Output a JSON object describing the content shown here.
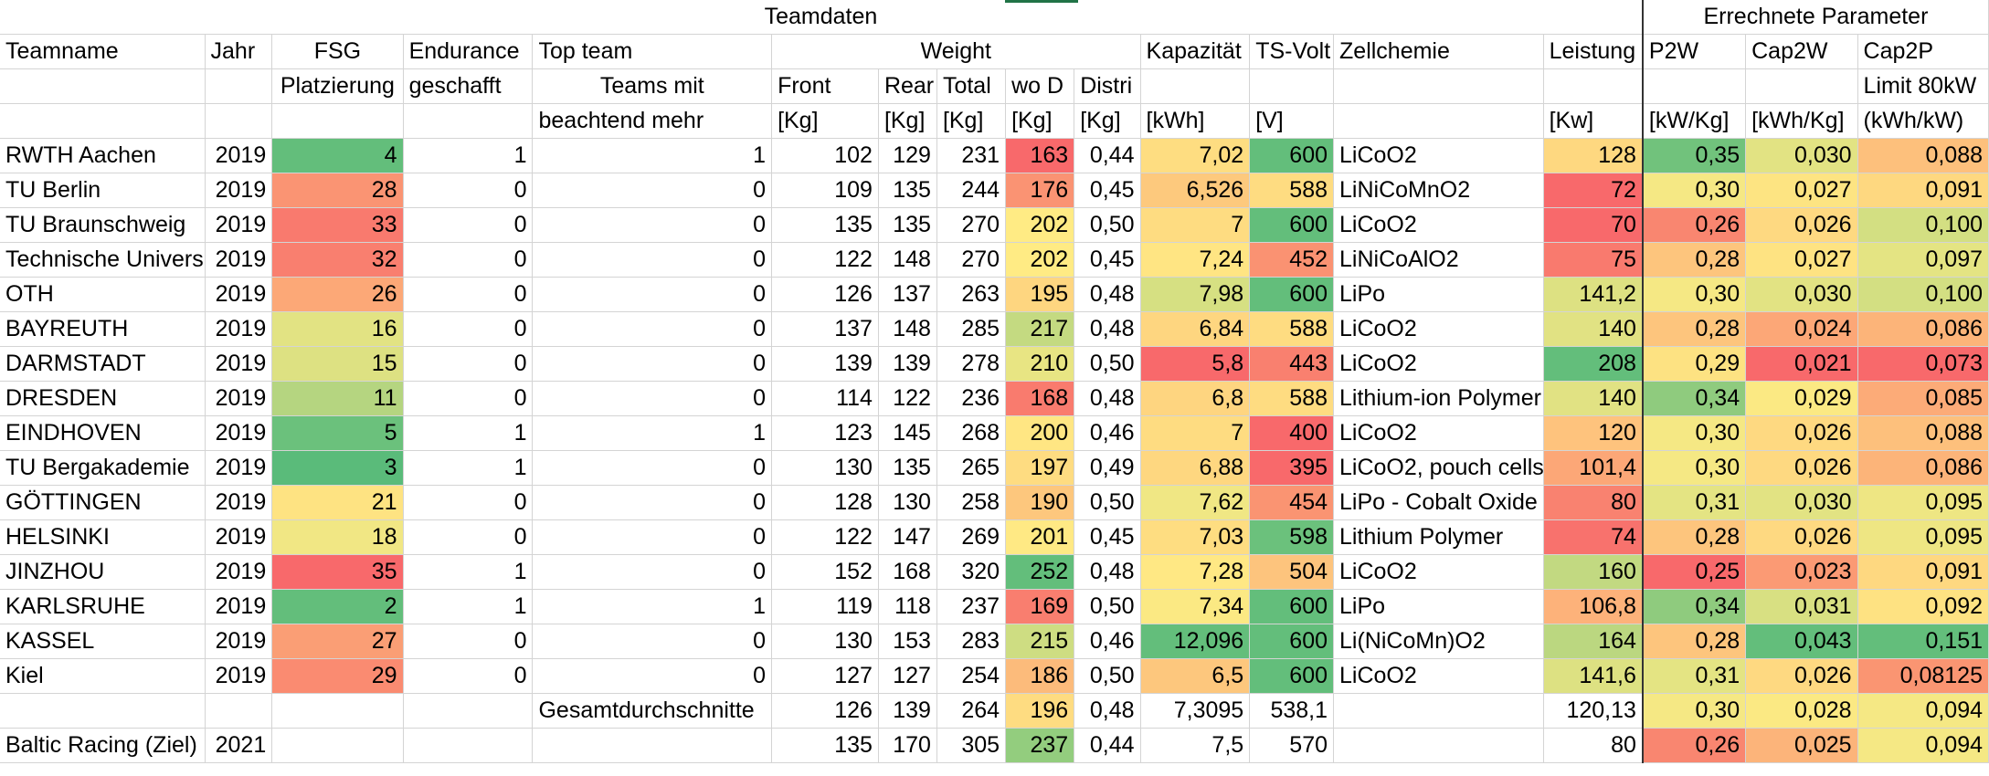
{
  "header": {
    "group_teamdaten": "Teamdaten",
    "group_errechnete": "Errechnete Parameter",
    "row2": [
      "Teamname",
      "Jahr",
      "FSG",
      "Endurance",
      "Top team",
      "Weight",
      "",
      "",
      "",
      "",
      "Kapazität",
      "TS-Volt",
      "Zellchemie",
      "Leistung",
      "P2W",
      "Cap2W",
      "Cap2P"
    ],
    "row3": [
      "",
      "",
      "Platzierung",
      "geschafft",
      "Teams mit",
      "Front",
      "Rear",
      "Total",
      "wo D",
      "Distri",
      "",
      "",
      "",
      "",
      "",
      "",
      "Limit 80kW"
    ],
    "row4": [
      "",
      "",
      "",
      "",
      "beachtend mehr",
      "[Kg]",
      "[Kg]",
      "[Kg]",
      "[Kg]",
      "[Kg]",
      "[kWh]",
      "[V]",
      "",
      "[Kw]",
      "[kW/Kg]",
      "[kWh/Kg]",
      "(kWh/kW)"
    ]
  },
  "rows": [
    {
      "name": "RWTH Aachen",
      "year": "2019",
      "fsg": "4",
      "endurance": "1",
      "top": "1",
      "front": "102",
      "rear": "129",
      "total": "231",
      "wod": "163",
      "distri": "0,44",
      "kap": "7,02",
      "volt": "600",
      "chem": "LiCoO2",
      "leist": "128",
      "p2w": "0,35",
      "cap2w": "0,030",
      "cap2p": "0,088",
      "c": {
        "fsg": "#63be7b",
        "wod": "#f8696b",
        "kap": "#fedd81",
        "volt": "#63be7b",
        "leist": "#fed880",
        "p2w": "#71c27c",
        "cap2w": "#e2e383",
        "cap2p": "#fdc07c"
      }
    },
    {
      "name": "TU Berlin",
      "year": "2019",
      "fsg": "28",
      "endurance": "0",
      "top": "0",
      "front": "109",
      "rear": "135",
      "total": "244",
      "wod": "176",
      "distri": "0,45",
      "kap": "6,526",
      "volt": "588",
      "chem": "LiNiCoMnO2",
      "leist": "72",
      "p2w": "0,30",
      "cap2w": "0,027",
      "cap2p": "0,091",
      "c": {
        "fsg": "#fa9473",
        "wod": "#fa9373",
        "kap": "#fdc97d",
        "volt": "#fedc81",
        "leist": "#f8696b",
        "p2w": "#f5e884",
        "cap2w": "#fde482",
        "cap2p": "#fed880"
      }
    },
    {
      "name": "TU Braunschweig",
      "year": "2019",
      "fsg": "33",
      "endurance": "0",
      "top": "0",
      "front": "135",
      "rear": "135",
      "total": "270",
      "wod": "202",
      "distri": "0,50",
      "kap": "7",
      "volt": "600",
      "chem": "LiCoO2",
      "leist": "70",
      "p2w": "0,26",
      "cap2w": "0,026",
      "cap2p": "0,100",
      "c": {
        "fsg": "#f97a6e",
        "wod": "#ffeb84",
        "kap": "#fedc81",
        "volt": "#63be7b",
        "leist": "#f8696b",
        "p2w": "#f98670",
        "cap2w": "#fed981",
        "cap2p": "#d3df82"
      }
    },
    {
      "name": "Technische Universität",
      "year": "2019",
      "fsg": "32",
      "endurance": "0",
      "top": "0",
      "front": "122",
      "rear": "148",
      "total": "270",
      "wod": "202",
      "distri": "0,45",
      "kap": "7,24",
      "volt": "452",
      "chem": "LiNiCoAlO2",
      "leist": "75",
      "p2w": "0,28",
      "cap2w": "0,027",
      "cap2p": "0,097",
      "c": {
        "fsg": "#f97f6f",
        "wod": "#ffeb84",
        "kap": "#ffe583",
        "volt": "#fa9272",
        "leist": "#f97a6e",
        "p2w": "#fdc57d",
        "cap2w": "#fee382",
        "cap2p": "#e4e483"
      }
    },
    {
      "name": "OTH",
      "year": "2019",
      "fsg": "26",
      "endurance": "0",
      "top": "0",
      "front": "126",
      "rear": "137",
      "total": "263",
      "wod": "195",
      "distri": "0,48",
      "kap": "7,98",
      "volt": "600",
      "chem": "LiPo",
      "leist": "141,2",
      "p2w": "0,30",
      "cap2w": "0,030",
      "cap2p": "0,100",
      "c": {
        "fsg": "#fca877",
        "wod": "#fed680",
        "kap": "#d6e082",
        "volt": "#63be7b",
        "leist": "#dde182",
        "p2w": "#f5e884",
        "cap2w": "#e2e383",
        "cap2p": "#d3df82"
      }
    },
    {
      "name": "BAYREUTH",
      "year": "2019",
      "fsg": "16",
      "endurance": "0",
      "top": "0",
      "front": "137",
      "rear": "148",
      "total": "285",
      "wod": "217",
      "distri": "0,48",
      "kap": "6,84",
      "volt": "588",
      "chem": "LiCoO2",
      "leist": "140",
      "p2w": "0,28",
      "cap2w": "0,024",
      "cap2p": "0,086",
      "c": {
        "fsg": "#e2e383",
        "wod": "#c4da81",
        "kap": "#fed680",
        "volt": "#fedc81",
        "leist": "#e1e283",
        "p2w": "#fdc57d",
        "cap2w": "#fca777",
        "cap2p": "#fcb479"
      }
    },
    {
      "name": "DARMSTADT",
      "year": "2019",
      "fsg": "15",
      "endurance": "0",
      "top": "0",
      "front": "139",
      "rear": "139",
      "total": "278",
      "wod": "210",
      "distri": "0,50",
      "kap": "5,8",
      "volt": "443",
      "chem": "LiCoO2",
      "leist": "208",
      "p2w": "0,29",
      "cap2w": "0,021",
      "cap2p": "0,073",
      "c": {
        "fsg": "#dde182",
        "wod": "#e8e583",
        "kap": "#f8696b",
        "volt": "#f9806f",
        "leist": "#63be7b",
        "p2w": "#fde282",
        "cap2w": "#f8696b",
        "cap2p": "#f8696b"
      }
    },
    {
      "name": "DRESDEN",
      "year": "2019",
      "fsg": "11",
      "endurance": "0",
      "top": "0",
      "front": "114",
      "rear": "122",
      "total": "236",
      "wod": "168",
      "distri": "0,48",
      "kap": "6,8",
      "volt": "588",
      "chem": "Lithium-ion Polymer",
      "leist": "140",
      "p2w": "0,34",
      "cap2w": "0,029",
      "cap2p": "0,085",
      "c": {
        "fsg": "#b5d580",
        "wod": "#f97b6e",
        "kap": "#fed580",
        "volt": "#fedc81",
        "leist": "#e1e283",
        "p2w": "#8fcb7e",
        "cap2w": "#fbe983",
        "cap2p": "#fcab78"
      }
    },
    {
      "name": "EINDHOVEN",
      "year": "2019",
      "fsg": "5",
      "endurance": "1",
      "top": "1",
      "front": "123",
      "rear": "145",
      "total": "268",
      "wod": "200",
      "distri": "0,46",
      "kap": "7",
      "volt": "400",
      "chem": "LiCoO2",
      "leist": "120",
      "p2w": "0,30",
      "cap2w": "0,026",
      "cap2p": "0,088",
      "c": {
        "fsg": "#6bc17c",
        "wod": "#ffe683",
        "kap": "#fedc81",
        "volt": "#f8696b",
        "leist": "#fec37d",
        "p2w": "#f5e884",
        "cap2w": "#fed981",
        "cap2p": "#fdc07c"
      }
    },
    {
      "name": "TU Bergakademie",
      "year": "2019",
      "fsg": "3",
      "endurance": "1",
      "top": "0",
      "front": "130",
      "rear": "135",
      "total": "265",
      "wod": "197",
      "distri": "0,49",
      "kap": "6,88",
      "volt": "395",
      "chem": "LiCoO2, pouch cells",
      "leist": "101,4",
      "p2w": "0,30",
      "cap2w": "0,026",
      "cap2p": "0,086",
      "c": {
        "fsg": "#5abb7a",
        "wod": "#fedc81",
        "kap": "#fed780",
        "volt": "#f8696b",
        "leist": "#fca777",
        "p2w": "#f5e884",
        "cap2w": "#fed981",
        "cap2p": "#fcb479"
      }
    },
    {
      "name": "GÖTTINGEN",
      "year": "2019",
      "fsg": "21",
      "endurance": "0",
      "top": "0",
      "front": "128",
      "rear": "130",
      "total": "258",
      "wod": "190",
      "distri": "0,50",
      "kap": "7,62",
      "volt": "454",
      "chem": "LiPo - Cobalt Oxide",
      "leist": "80",
      "p2w": "0,31",
      "cap2w": "0,030",
      "cap2p": "0,095",
      "c": {
        "fsg": "#fee382",
        "wod": "#fdc77d",
        "kap": "#f0e784",
        "volt": "#fa9472",
        "leist": "#f98270",
        "p2w": "#e4e483",
        "cap2w": "#e2e383",
        "cap2p": "#eee683"
      }
    },
    {
      "name": "HELSINKI",
      "year": "2019",
      "fsg": "18",
      "endurance": "0",
      "top": "0",
      "front": "122",
      "rear": "147",
      "total": "269",
      "wod": "201",
      "distri": "0,45",
      "kap": "7,03",
      "volt": "598",
      "chem": "Lithium Polymer",
      "leist": "74",
      "p2w": "0,28",
      "cap2w": "0,026",
      "cap2p": "0,095",
      "c": {
        "fsg": "#f1e784",
        "wod": "#ffe984",
        "kap": "#fedd81",
        "volt": "#6bc17c",
        "leist": "#f8726d",
        "p2w": "#fdc57d",
        "cap2w": "#fed981",
        "cap2p": "#eee683"
      }
    },
    {
      "name": "JINZHOU",
      "year": "2019",
      "fsg": "35",
      "endurance": "1",
      "top": "0",
      "front": "152",
      "rear": "168",
      "total": "320",
      "wod": "252",
      "distri": "0,48",
      "kap": "7,28",
      "volt": "504",
      "chem": "LiCoO2",
      "leist": "160",
      "p2w": "0,25",
      "cap2w": "0,023",
      "cap2p": "0,091",
      "c": {
        "fsg": "#f8696b",
        "wod": "#63be7b",
        "kap": "#ffe884",
        "volt": "#fdc47d",
        "leist": "#c2d981",
        "p2w": "#f8696b",
        "cap2w": "#fb9a74",
        "cap2p": "#fed880"
      }
    },
    {
      "name": "KARLSRUHE",
      "year": "2019",
      "fsg": "2",
      "endurance": "1",
      "top": "1",
      "front": "119",
      "rear": "118",
      "total": "237",
      "wod": "169",
      "distri": "0,50",
      "kap": "7,34",
      "volt": "600",
      "chem": "LiPo",
      "leist": "106,8",
      "p2w": "0,34",
      "cap2w": "0,031",
      "cap2p": "0,092",
      "c": {
        "fsg": "#63be7b",
        "wod": "#f97e6f",
        "kap": "#fbe983",
        "volt": "#63be7b",
        "leist": "#fdb27a",
        "p2w": "#8fcb7e",
        "cap2w": "#d8e082",
        "cap2p": "#fee282"
      }
    },
    {
      "name": "KASSEL",
      "year": "2019",
      "fsg": "27",
      "endurance": "0",
      "top": "0",
      "front": "130",
      "rear": "153",
      "total": "283",
      "wod": "215",
      "distri": "0,46",
      "kap": "12,096",
      "volt": "600",
      "chem": "Li(NiCoMn)O2",
      "leist": "164",
      "p2w": "0,28",
      "cap2w": "0,043",
      "cap2p": "0,151",
      "c": {
        "fsg": "#fa9e75",
        "wod": "#cedd82",
        "kap": "#63be7b",
        "volt": "#63be7b",
        "leist": "#bbd780",
        "p2w": "#fdc57d",
        "cap2w": "#63be7b",
        "cap2p": "#63be7b"
      }
    },
    {
      "name": "Kiel",
      "year": "2019",
      "fsg": "29",
      "endurance": "0",
      "top": "0",
      "front": "127",
      "rear": "127",
      "total": "254",
      "wod": "186",
      "distri": "0,50",
      "kap": "6,5",
      "volt": "600",
      "chem": "LiCoO2",
      "leist": "141,6",
      "p2w": "0,31",
      "cap2w": "0,026",
      "cap2p": "0,08125",
      "c": {
        "fsg": "#fa8b71",
        "wod": "#fcbb7b",
        "kap": "#fdc77d",
        "volt": "#63be7b",
        "leist": "#dde182",
        "p2w": "#e4e483",
        "cap2w": "#fed981",
        "cap2p": "#fa9572"
      }
    }
  ],
  "summary": {
    "label": "Gesamtdurchschnitte",
    "front": "126",
    "rear": "139",
    "total": "264",
    "wod": "196",
    "distri": "0,48",
    "kap": "7,3095",
    "volt": "538,1",
    "leist": "120,13",
    "p2w": "0,30",
    "cap2w": "0,028",
    "cap2p": "0,094",
    "c": {
      "wod": "#fedc81",
      "p2w": "#f5e884",
      "cap2w": "#fbe983",
      "cap2p": "#f5e884"
    }
  },
  "target": {
    "name": "Baltic Racing (Ziel)",
    "year": "2021",
    "front": "135",
    "rear": "170",
    "total": "305",
    "wod": "237",
    "distri": "0,44",
    "kap": "7,5",
    "volt": "570",
    "leist": "80",
    "p2w": "0,26",
    "cap2w": "0,025",
    "cap2p": "0,094",
    "c": {
      "wod": "#93cd7e",
      "p2w": "#f98670",
      "cap2w": "#fcb47a",
      "cap2p": "#f5e884"
    }
  }
}
